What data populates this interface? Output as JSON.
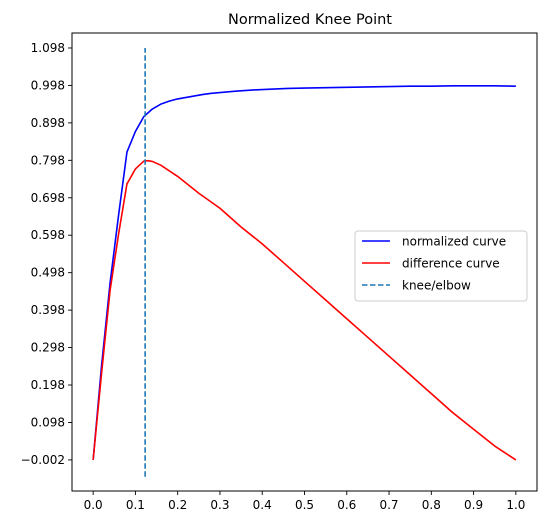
{
  "chart_data": {
    "type": "line",
    "title": "Normalized Knee Point",
    "xlabel": "",
    "ylabel": "",
    "xlim": [
      -0.05,
      1.05
    ],
    "ylim": [
      -0.085,
      1.138
    ],
    "grid": false,
    "legend_position": "center-right",
    "x_ticks": [
      0.0,
      0.1,
      0.2,
      0.3,
      0.4,
      0.5,
      0.6,
      0.7,
      0.8,
      0.9,
      1.0
    ],
    "x_tick_labels": [
      "0.0",
      "0.1",
      "0.2",
      "0.3",
      "0.4",
      "0.5",
      "0.6",
      "0.7",
      "0.8",
      "0.9",
      "1.0"
    ],
    "y_ticks": [
      -0.002,
      0.098,
      0.198,
      0.298,
      0.398,
      0.498,
      0.598,
      0.698,
      0.798,
      0.898,
      0.998,
      1.098
    ],
    "y_tick_labels": [
      "−0.002",
      "0.098",
      "0.198",
      "0.298",
      "0.398",
      "0.498",
      "0.598",
      "0.698",
      "0.798",
      "0.898",
      "0.998",
      "1.098"
    ],
    "series": [
      {
        "name": "normalized curve",
        "color": "#0000ff",
        "style": "solid",
        "x": [
          0.0,
          0.02,
          0.04,
          0.06,
          0.08,
          0.1,
          0.12,
          0.14,
          0.16,
          0.18,
          0.2,
          0.22,
          0.24,
          0.26,
          0.28,
          0.3,
          0.34,
          0.38,
          0.42,
          0.46,
          0.5,
          0.55,
          0.6,
          0.65,
          0.7,
          0.75,
          0.8,
          0.85,
          0.9,
          0.95,
          1.0
        ],
        "y": [
          -0.002,
          0.25,
          0.47,
          0.65,
          0.82,
          0.875,
          0.915,
          0.935,
          0.948,
          0.956,
          0.962,
          0.966,
          0.97,
          0.974,
          0.977,
          0.979,
          0.983,
          0.986,
          0.988,
          0.99,
          0.991,
          0.992,
          0.993,
          0.994,
          0.995,
          0.996,
          0.996,
          0.997,
          0.997,
          0.997,
          0.996
        ]
      },
      {
        "name": "difference curve",
        "color": "#ff0000",
        "style": "solid",
        "x": [
          0.0,
          0.02,
          0.04,
          0.06,
          0.08,
          0.1,
          0.12,
          0.13,
          0.14,
          0.16,
          0.18,
          0.2,
          0.25,
          0.3,
          0.35,
          0.4,
          0.45,
          0.5,
          0.55,
          0.6,
          0.65,
          0.7,
          0.75,
          0.8,
          0.85,
          0.9,
          0.95,
          1.0
        ],
        "y": [
          -0.002,
          0.23,
          0.45,
          0.6,
          0.735,
          0.775,
          0.796,
          0.797,
          0.795,
          0.785,
          0.77,
          0.755,
          0.71,
          0.67,
          0.62,
          0.575,
          0.525,
          0.475,
          0.425,
          0.375,
          0.325,
          0.275,
          0.225,
          0.175,
          0.125,
          0.08,
          0.035,
          -0.002
        ]
      },
      {
        "name": "knee/elbow",
        "color": "#1f77b4",
        "style": "dashed",
        "x": [
          0.123,
          0.123
        ],
        "y": [
          -0.047,
          1.098
        ]
      }
    ]
  }
}
